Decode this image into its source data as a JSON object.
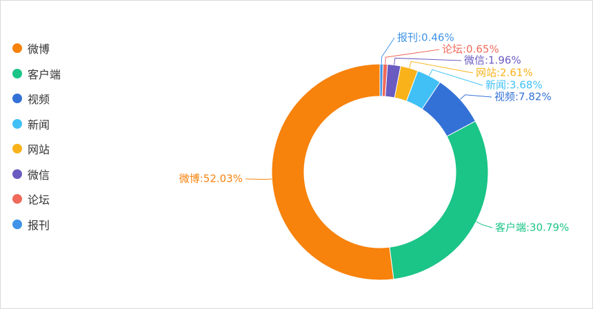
{
  "chart_data": {
    "type": "pie",
    "variant": "donut",
    "legend_position": "left",
    "slices": [
      {
        "name": "微博",
        "value": 52.03,
        "label": "微博:52.03%",
        "color": "#f7820c"
      },
      {
        "name": "客户端",
        "value": 30.79,
        "label": "客户端:30.79%",
        "color": "#1bc487"
      },
      {
        "name": "视频",
        "value": 7.82,
        "label": "视频:7.82%",
        "color": "#3371d6"
      },
      {
        "name": "新闻",
        "value": 3.68,
        "label": "新闻:3.68%",
        "color": "#40c0f5"
      },
      {
        "name": "网站",
        "value": 2.61,
        "label": "网站:2.61%",
        "color": "#f9b21a"
      },
      {
        "name": "微信",
        "value": 1.96,
        "label": "微信:1.96%",
        "color": "#6a5bc1"
      },
      {
        "name": "论坛",
        "value": 0.65,
        "label": "论坛:0.65%",
        "color": "#ef6a5a"
      },
      {
        "name": "报刊",
        "value": 0.46,
        "label": "报刊:0.46%",
        "color": "#3f93e8"
      }
    ]
  }
}
